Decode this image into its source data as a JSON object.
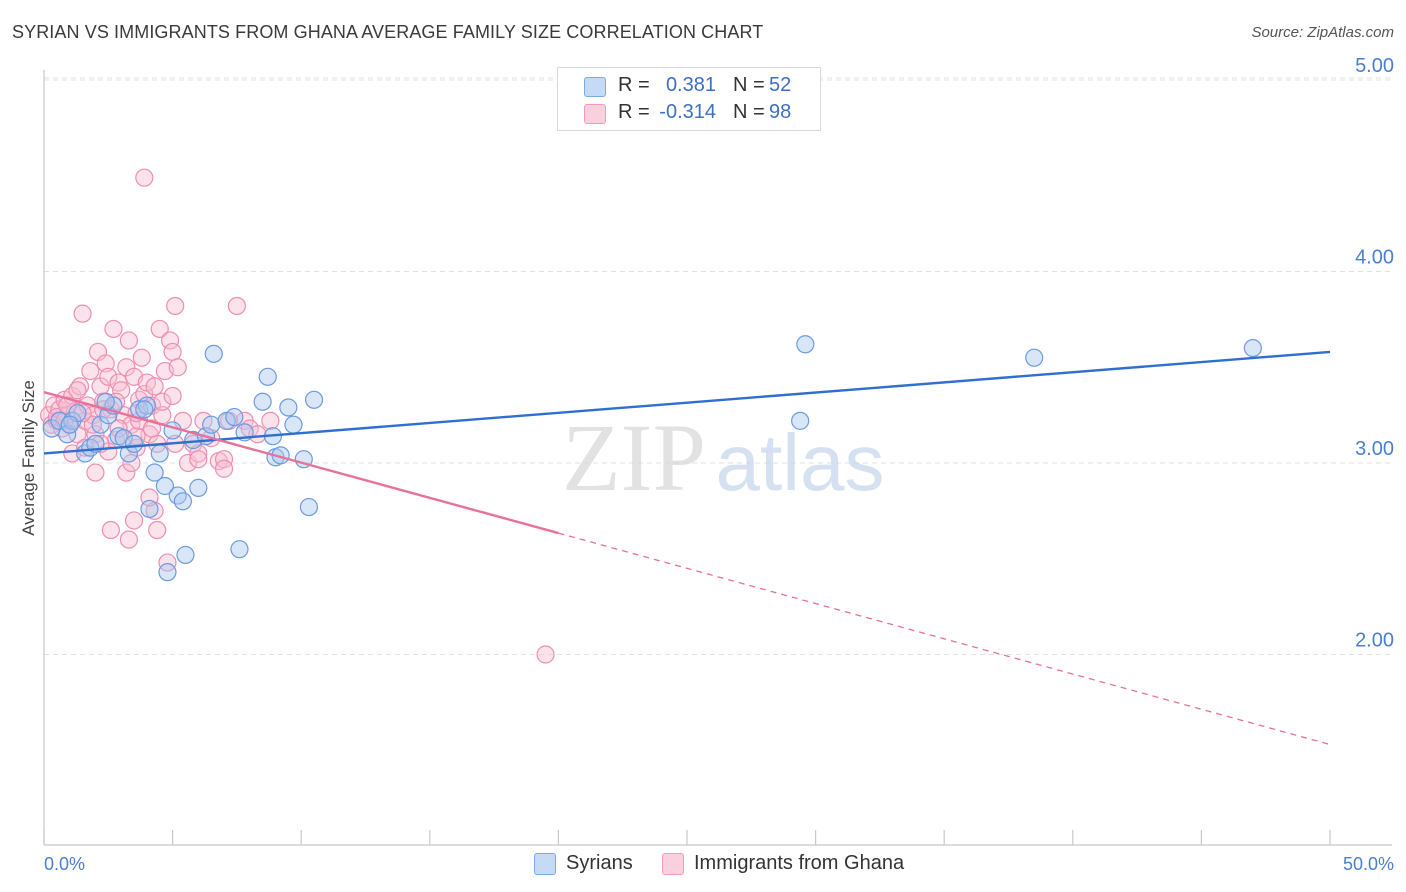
{
  "title": "SYRIAN VS IMMIGRANTS FROM GHANA AVERAGE FAMILY SIZE CORRELATION CHART",
  "source": "Source: ZipAtlas.com",
  "watermark": {
    "zip": "ZIP",
    "atlas": "atlas"
  },
  "legend": {
    "r_label": "R =",
    "n_label": "N =",
    "rows": [
      {
        "name": "Syrians",
        "r": "0.381",
        "n": "52"
      },
      {
        "name": "Immigrants from Ghana",
        "r": "-0.314",
        "n": "98"
      }
    ]
  },
  "chart_data": {
    "type": "scatter",
    "title": "SYRIAN VS IMMIGRANTS FROM GHANA AVERAGE FAMILY SIZE CORRELATION CHART",
    "xlabel": "",
    "ylabel": "Average Family Size",
    "xlim": [
      0,
      50
    ],
    "ylim": [
      1.0,
      5.1
    ],
    "x_tick_labels": [
      "0.0%",
      "50.0%"
    ],
    "y_ticks": [
      2.0,
      3.0,
      4.0,
      5.0
    ],
    "y_tick_labels": [
      "2.00",
      "3.00",
      "4.00",
      "5.00"
    ],
    "grid": true,
    "colors": {
      "syrians": "#7aaae8",
      "ghana": "#f49ab8",
      "syrians_line": "#2e6fd0",
      "ghana_line": "#e8719c"
    },
    "series": [
      {
        "name": "Syrians",
        "r": 0.381,
        "n": 52,
        "trend": {
          "x0": 0,
          "y0": 3.05,
          "x1": 50,
          "y1": 3.58,
          "solid_until": 50
        },
        "points": [
          [
            0.3,
            3.18
          ],
          [
            0.6,
            3.22
          ],
          [
            0.9,
            3.15
          ],
          [
            1.1,
            3.22
          ],
          [
            1.3,
            3.26
          ],
          [
            1.6,
            3.05
          ],
          [
            1.8,
            3.08
          ],
          [
            2.0,
            3.1
          ],
          [
            2.2,
            3.2
          ],
          [
            2.5,
            3.25
          ],
          [
            2.7,
            3.3
          ],
          [
            2.9,
            3.14
          ],
          [
            3.1,
            3.13
          ],
          [
            3.3,
            3.05
          ],
          [
            3.5,
            3.1
          ],
          [
            3.7,
            3.28
          ],
          [
            4.0,
            3.3
          ],
          [
            4.1,
            2.76
          ],
          [
            4.3,
            2.95
          ],
          [
            4.5,
            3.05
          ],
          [
            4.7,
            2.88
          ],
          [
            4.8,
            2.43
          ],
          [
            5.0,
            3.17
          ],
          [
            5.2,
            2.83
          ],
          [
            5.4,
            2.8
          ],
          [
            5.5,
            2.52
          ],
          [
            5.8,
            3.12
          ],
          [
            6.0,
            2.87
          ],
          [
            6.3,
            3.14
          ],
          [
            6.5,
            3.2
          ],
          [
            6.6,
            3.57
          ],
          [
            7.1,
            3.22
          ],
          [
            7.4,
            3.24
          ],
          [
            7.6,
            2.55
          ],
          [
            7.8,
            3.16
          ],
          [
            8.5,
            3.32
          ],
          [
            8.7,
            3.45
          ],
          [
            8.9,
            3.14
          ],
          [
            9.0,
            3.03
          ],
          [
            9.2,
            3.04
          ],
          [
            9.5,
            3.29
          ],
          [
            9.7,
            3.2
          ],
          [
            10.1,
            3.02
          ],
          [
            10.3,
            2.77
          ],
          [
            10.5,
            3.33
          ],
          [
            29.6,
            3.62
          ],
          [
            29.4,
            3.22
          ],
          [
            38.5,
            3.55
          ],
          [
            47.0,
            3.6
          ],
          [
            1.0,
            3.2
          ],
          [
            2.4,
            3.32
          ],
          [
            3.9,
            3.28
          ]
        ]
      },
      {
        "name": "Immigrants from Ghana",
        "r": -0.314,
        "n": 98,
        "trend": {
          "x0": 0,
          "y0": 3.37,
          "x1": 50,
          "y1": 1.53,
          "solid_until": 20
        },
        "points": [
          [
            0.2,
            3.25
          ],
          [
            0.3,
            3.2
          ],
          [
            0.4,
            3.3
          ],
          [
            0.5,
            3.22
          ],
          [
            0.6,
            3.28
          ],
          [
            0.7,
            3.18
          ],
          [
            0.8,
            3.33
          ],
          [
            0.9,
            3.25
          ],
          [
            1.0,
            3.2
          ],
          [
            1.1,
            3.35
          ],
          [
            1.2,
            3.27
          ],
          [
            1.3,
            3.15
          ],
          [
            1.4,
            3.4
          ],
          [
            1.5,
            3.78
          ],
          [
            1.6,
            3.22
          ],
          [
            1.7,
            3.3
          ],
          [
            1.8,
            3.48
          ],
          [
            1.9,
            3.25
          ],
          [
            2.0,
            3.15
          ],
          [
            2.1,
            3.58
          ],
          [
            2.2,
            3.4
          ],
          [
            2.3,
            3.32
          ],
          [
            2.4,
            3.52
          ],
          [
            2.5,
            3.45
          ],
          [
            2.6,
            3.28
          ],
          [
            2.7,
            3.7
          ],
          [
            2.8,
            3.12
          ],
          [
            2.9,
            3.42
          ],
          [
            3.0,
            3.38
          ],
          [
            3.1,
            3.25
          ],
          [
            3.2,
            3.5
          ],
          [
            3.3,
            3.64
          ],
          [
            3.4,
            3.2
          ],
          [
            3.5,
            3.45
          ],
          [
            3.6,
            3.08
          ],
          [
            3.7,
            3.33
          ],
          [
            3.8,
            3.55
          ],
          [
            3.9,
            3.36
          ],
          [
            4.0,
            3.42
          ],
          [
            4.1,
            3.15
          ],
          [
            4.2,
            3.3
          ],
          [
            4.3,
            3.4
          ],
          [
            4.4,
            3.1
          ],
          [
            4.5,
            3.7
          ],
          [
            4.6,
            3.25
          ],
          [
            4.7,
            3.48
          ],
          [
            4.8,
            2.48
          ],
          [
            4.9,
            3.64
          ],
          [
            5.0,
            3.58
          ],
          [
            5.1,
            3.82
          ],
          [
            5.2,
            3.5
          ],
          [
            5.4,
            3.22
          ],
          [
            5.6,
            3.0
          ],
          [
            5.8,
            3.1
          ],
          [
            6.0,
            3.05
          ],
          [
            6.2,
            3.22
          ],
          [
            6.5,
            3.13
          ],
          [
            6.8,
            3.01
          ],
          [
            7.0,
            3.02
          ],
          [
            7.2,
            3.22
          ],
          [
            7.5,
            3.82
          ],
          [
            7.8,
            3.22
          ],
          [
            8.0,
            3.18
          ],
          [
            8.3,
            3.15
          ],
          [
            8.8,
            3.22
          ],
          [
            3.9,
            4.49
          ],
          [
            3.5,
            2.7
          ],
          [
            3.3,
            2.6
          ],
          [
            4.4,
            2.65
          ],
          [
            4.3,
            2.75
          ],
          [
            2.6,
            2.65
          ],
          [
            3.2,
            2.95
          ],
          [
            2.0,
            2.95
          ],
          [
            3.4,
            3.0
          ],
          [
            4.1,
            2.82
          ],
          [
            5.1,
            3.1
          ],
          [
            6.0,
            3.02
          ],
          [
            2.5,
            3.06
          ],
          [
            3.6,
            3.14
          ],
          [
            1.1,
            3.05
          ],
          [
            1.6,
            3.08
          ],
          [
            2.9,
            3.18
          ],
          [
            3.7,
            3.22
          ],
          [
            4.6,
            3.32
          ],
          [
            0.5,
            3.24
          ],
          [
            0.8,
            3.22
          ],
          [
            1.3,
            3.38
          ],
          [
            1.9,
            3.2
          ],
          [
            2.3,
            3.28
          ],
          [
            2.8,
            3.32
          ],
          [
            3.6,
            3.26
          ],
          [
            4.2,
            3.18
          ],
          [
            5.0,
            3.35
          ],
          [
            0.9,
            3.3
          ],
          [
            1.5,
            3.26
          ],
          [
            2.2,
            3.1
          ],
          [
            7.0,
            2.97
          ],
          [
            19.5,
            2.0
          ]
        ]
      }
    ]
  }
}
